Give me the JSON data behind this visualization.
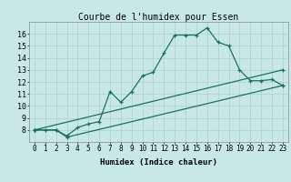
{
  "title": "Courbe de l'humidex pour Essen",
  "xlabel": "Humidex (Indice chaleur)",
  "background_color": "#c8e8e8",
  "grid_color": "#afd4d4",
  "line_color": "#1a7060",
  "xlim": [
    -0.5,
    23.5
  ],
  "ylim": [
    7,
    17
  ],
  "xticks": [
    0,
    1,
    2,
    3,
    4,
    5,
    6,
    7,
    8,
    9,
    10,
    11,
    12,
    13,
    14,
    15,
    16,
    17,
    18,
    19,
    20,
    21,
    22,
    23
  ],
  "yticks": [
    8,
    9,
    10,
    11,
    12,
    13,
    14,
    15,
    16
  ],
  "series1_x": [
    0,
    1,
    2,
    3,
    4,
    5,
    6,
    7,
    8,
    9,
    10,
    11,
    12,
    13,
    14,
    15,
    16,
    17,
    18,
    19,
    20,
    21,
    22,
    23
  ],
  "series1_y": [
    8.0,
    8.0,
    8.0,
    7.5,
    8.2,
    8.5,
    8.7,
    11.2,
    10.3,
    11.2,
    12.5,
    12.8,
    14.4,
    15.9,
    15.9,
    15.9,
    16.5,
    15.3,
    15.0,
    13.0,
    12.1,
    12.1,
    12.2,
    11.7
  ],
  "series2_x": [
    0,
    2,
    3,
    23
  ],
  "series2_y": [
    8.0,
    8.0,
    7.4,
    11.7
  ],
  "series3_x": [
    0,
    23
  ],
  "series3_y": [
    8.0,
    13.0
  ],
  "tick_fontsize": 5.5,
  "xlabel_fontsize": 6.5,
  "title_fontsize": 7.0
}
